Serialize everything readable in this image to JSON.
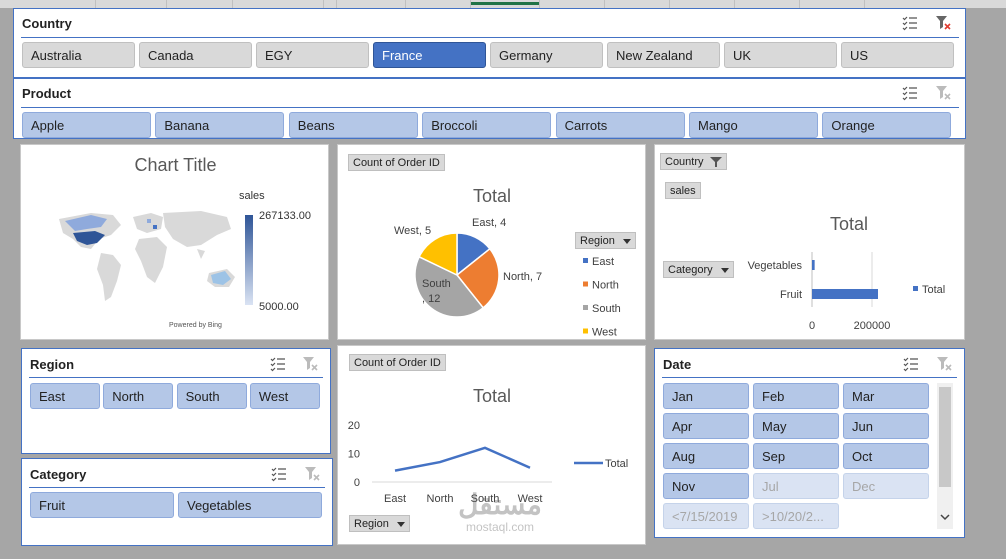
{
  "country_slicer": {
    "title": "Country",
    "items": [
      {
        "label": "Australia",
        "state": "gray"
      },
      {
        "label": "Canada",
        "state": "gray"
      },
      {
        "label": "EGY",
        "state": "gray"
      },
      {
        "label": "France",
        "state": "sel"
      },
      {
        "label": "Germany",
        "state": "gray"
      },
      {
        "label": "New Zealand",
        "state": "gray"
      },
      {
        "label": "UK",
        "state": "gray"
      },
      {
        "label": "US",
        "state": "gray"
      }
    ]
  },
  "product_slicer": {
    "title": "Product",
    "items": [
      "Apple",
      "Banana",
      "Beans",
      "Broccoli",
      "Carrots",
      "Mango",
      "Orange"
    ]
  },
  "map_chart": {
    "title": "Chart Title",
    "legend_title": "sales",
    "legend_max": "267133.00",
    "legend_min": "5000.00",
    "credit": "Powered by Bing"
  },
  "pie_chart": {
    "field_button": "Count of Order ID",
    "legend_field": "Region",
    "chart_data": {
      "type": "pie",
      "title": "Total",
      "categories": [
        "East",
        "North",
        "South",
        "West"
      ],
      "values": [
        4,
        7,
        12,
        5
      ],
      "colors": [
        "#4472c4",
        "#ed7d31",
        "#a5a5a5",
        "#ffc000"
      ],
      "data_labels": [
        "East, 4",
        "North, 7",
        "South\n, 12",
        "West, 5"
      ]
    }
  },
  "bar_chart": {
    "field_button": "Country",
    "value_button": "sales",
    "axis_button": "Category",
    "chart_data": {
      "type": "bar",
      "orientation": "horizontal",
      "title": "Total",
      "categories": [
        "Vegetables",
        "Fruit"
      ],
      "values": [
        6000,
        150000
      ],
      "xlim": [
        0,
        250000
      ],
      "xticks": [
        "0",
        "200000"
      ],
      "legend": "Total",
      "color": "#4472c4"
    }
  },
  "region_slicer": {
    "title": "Region",
    "items": [
      "East",
      "North",
      "South",
      "West"
    ]
  },
  "category_slicer": {
    "title": "Category",
    "items": [
      "Fruit",
      "Vegetables"
    ]
  },
  "line_chart": {
    "field_button": "Count of Order ID",
    "axis_button": "Region",
    "chart_data": {
      "type": "line",
      "title": "Total",
      "categories": [
        "East",
        "North",
        "South",
        "West"
      ],
      "values": [
        4,
        7,
        12,
        5
      ],
      "ylim": [
        0,
        20
      ],
      "yticks": [
        "0",
        "10",
        "20"
      ],
      "legend": "Total",
      "color": "#4472c4"
    }
  },
  "date_slicer": {
    "title": "Date",
    "items": [
      {
        "label": "Jan",
        "state": "on"
      },
      {
        "label": "Feb",
        "state": "on"
      },
      {
        "label": "Mar",
        "state": "on"
      },
      {
        "label": "Apr",
        "state": "on"
      },
      {
        "label": "May",
        "state": "on"
      },
      {
        "label": "Jun",
        "state": "on"
      },
      {
        "label": "Aug",
        "state": "on"
      },
      {
        "label": "Sep",
        "state": "on"
      },
      {
        "label": "Oct",
        "state": "on"
      },
      {
        "label": "Nov",
        "state": "on"
      },
      {
        "label": "Jul",
        "state": "dim"
      },
      {
        "label": "Dec",
        "state": "dim"
      },
      {
        "label": "<7/15/2019",
        "state": "dim"
      },
      {
        "label": ">10/20/2...",
        "state": "dim"
      }
    ]
  },
  "watermark": {
    "text_ar": "مستقل",
    "text_en": "mostaql.com"
  }
}
